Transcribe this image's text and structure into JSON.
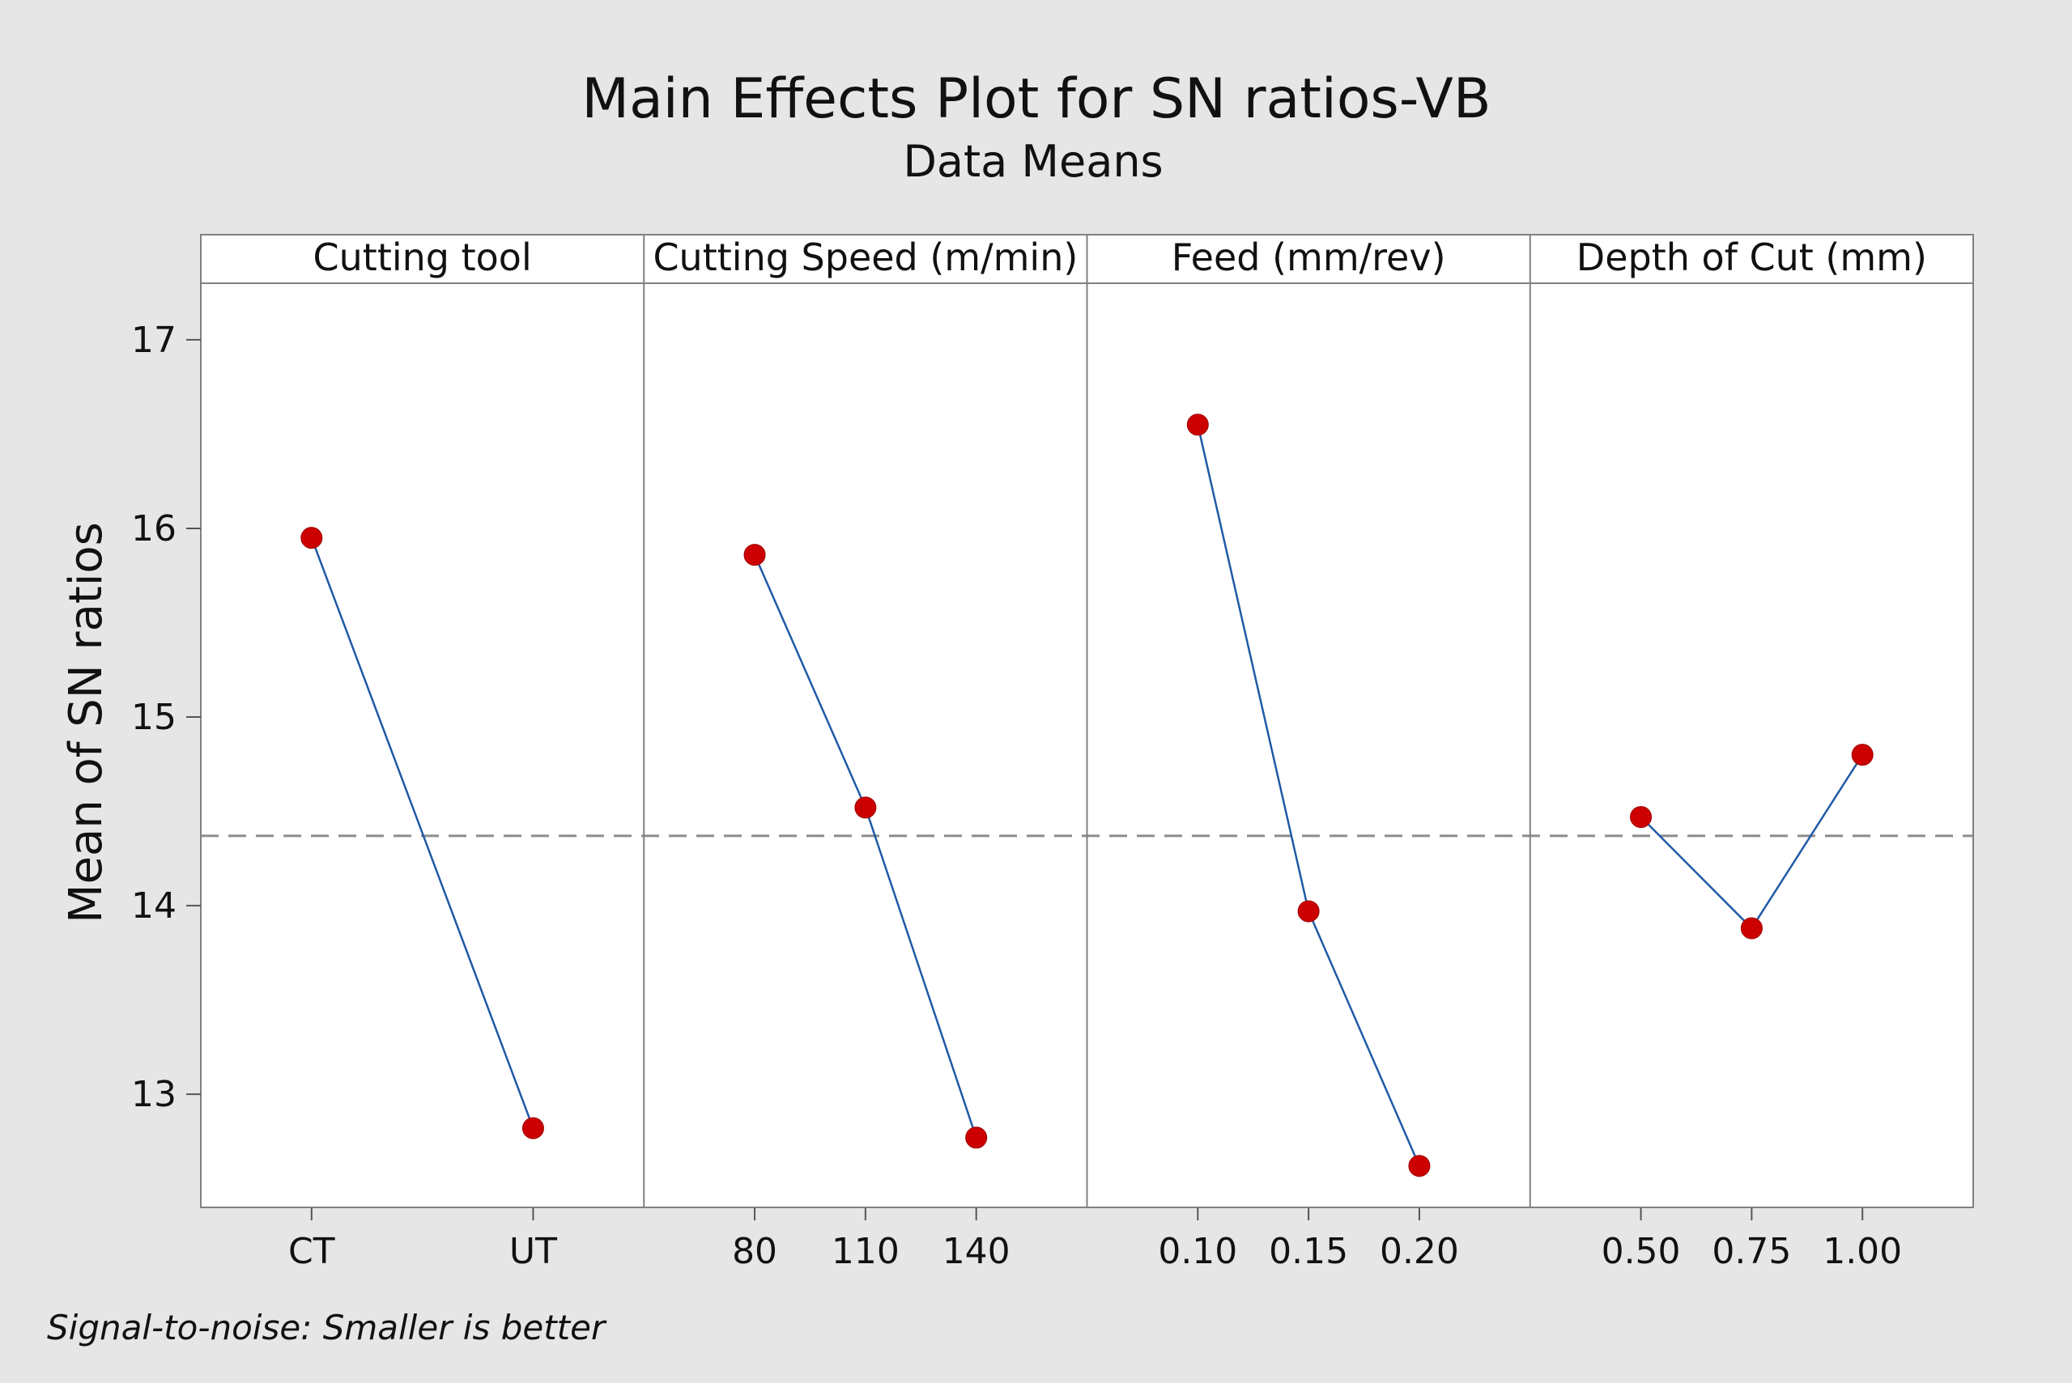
{
  "chart_data": {
    "type": "line",
    "title": "Main Effects Plot for SN ratios-VB",
    "subtitle": "Data Means",
    "ylabel": "Mean of SN ratios",
    "footnote": "Signal-to-noise: Smaller is better",
    "ylim": [
      12.4,
      17.3
    ],
    "yticks": [
      "13",
      "14",
      "15",
      "16",
      "17"
    ],
    "reference_mean": 14.37,
    "grid": false,
    "legend": "none",
    "colors": {
      "line": "#1f5aa6",
      "marker": "#cc0000",
      "reference": "#8c8c8c"
    },
    "panels": [
      {
        "name": "Cutting tool",
        "x": [
          "CT",
          "UT"
        ],
        "values": [
          15.95,
          12.82
        ]
      },
      {
        "name": "Cutting Speed (m/min)",
        "x": [
          "80",
          "110",
          "140"
        ],
        "values": [
          15.86,
          14.52,
          12.77
        ]
      },
      {
        "name": "Feed (mm/rev)",
        "x": [
          "0.10",
          "0.15",
          "0.20"
        ],
        "values": [
          16.55,
          13.97,
          12.62
        ]
      },
      {
        "name": "Depth of Cut (mm)",
        "x": [
          "0.50",
          "0.75",
          "1.00"
        ],
        "values": [
          14.47,
          13.88,
          14.8
        ]
      }
    ]
  }
}
